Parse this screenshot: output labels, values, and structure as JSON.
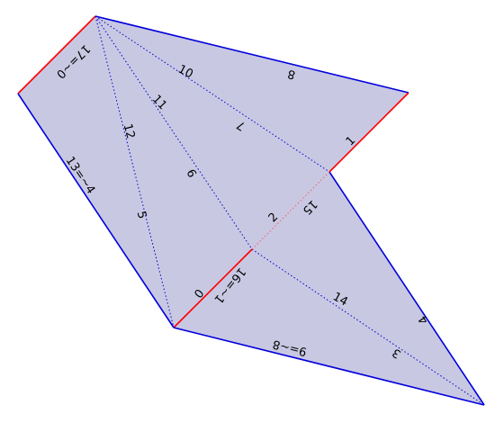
{
  "colors": {
    "fill": "#c8c8e3",
    "boundary": "#0000dd",
    "constrained": "#ff0000",
    "diagonal": "#0000cc",
    "constrained_diagonal": "#ff5a5a"
  },
  "edge_labels": [
    {
      "id": "e0",
      "text": "0"
    },
    {
      "id": "e1",
      "text": "1"
    },
    {
      "id": "e2",
      "text": "2"
    },
    {
      "id": "e3",
      "text": "3"
    },
    {
      "id": "e4",
      "text": "4"
    },
    {
      "id": "e5",
      "text": "5"
    },
    {
      "id": "e6",
      "text": "6"
    },
    {
      "id": "e7",
      "text": "7"
    },
    {
      "id": "e8",
      "text": "8"
    },
    {
      "id": "e9",
      "text": "9=~8"
    },
    {
      "id": "e10",
      "text": "10"
    },
    {
      "id": "e11",
      "text": "11"
    },
    {
      "id": "e12",
      "text": "12"
    },
    {
      "id": "e13",
      "text": "13=~4"
    },
    {
      "id": "e14",
      "text": "14"
    },
    {
      "id": "e15",
      "text": "15"
    },
    {
      "id": "e16",
      "text": "16=~1"
    },
    {
      "id": "e17",
      "text": "17=~0"
    }
  ]
}
